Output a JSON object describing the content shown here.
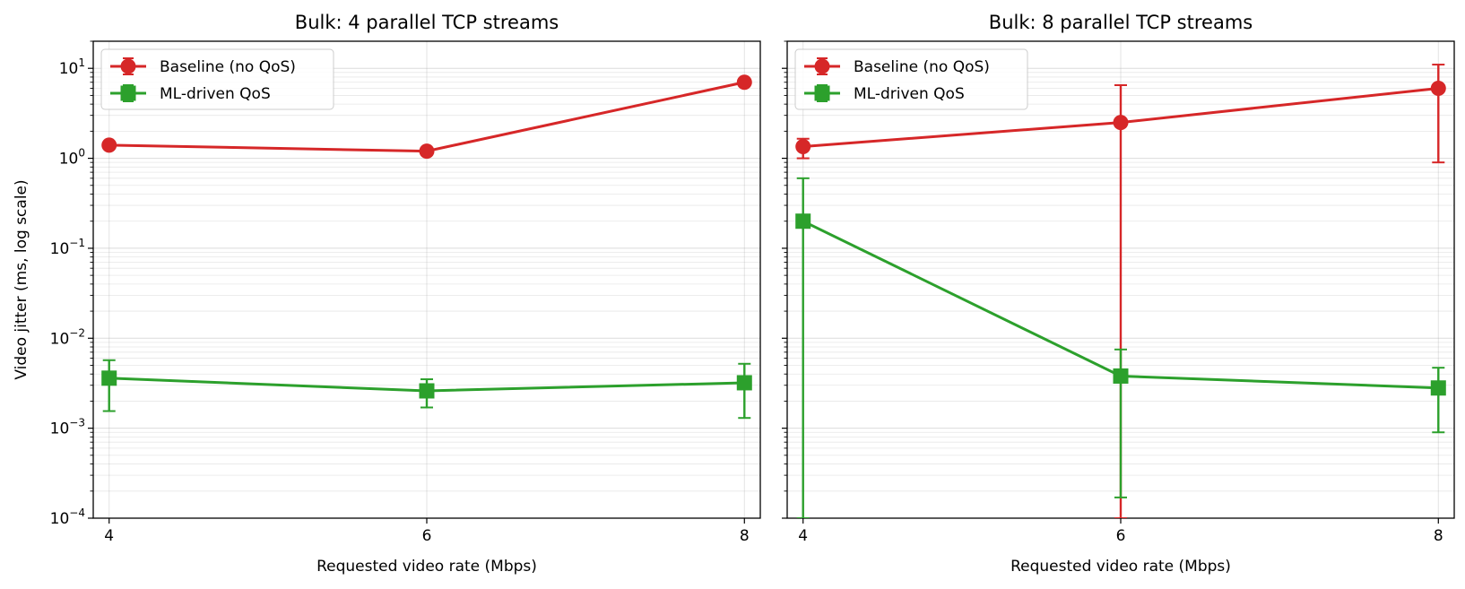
{
  "chart_data": [
    {
      "type": "line",
      "title": "Bulk: 4 parallel TCP streams",
      "xlabel": "Requested video rate (Mbps)",
      "ylabel": "Video jitter (ms, log scale)",
      "yscale": "log",
      "ylim": [
        0.0001,
        20
      ],
      "xlim": [
        3.9,
        8.1
      ],
      "x": [
        4,
        6,
        8
      ],
      "xticks": [
        "4",
        "6",
        "8"
      ],
      "yticks": [
        {
          "value": 0.0001,
          "base": "10",
          "exp": "−4"
        },
        {
          "value": 0.001,
          "base": "10",
          "exp": "−3"
        },
        {
          "value": 0.01,
          "base": "10",
          "exp": "−2"
        },
        {
          "value": 0.1,
          "base": "10",
          "exp": "−1"
        },
        {
          "value": 1,
          "base": "10",
          "exp": "0"
        },
        {
          "value": 10,
          "base": "10",
          "exp": "1"
        }
      ],
      "grid": true,
      "legend_position": "top-left",
      "series": [
        {
          "name": "Baseline (no QoS)",
          "marker": "circle",
          "color": "#d62728",
          "values": [
            1.4,
            1.2,
            7.0
          ],
          "err_low": [
            1.4,
            1.2,
            7.0
          ],
          "err_high": [
            1.4,
            1.2,
            7.0
          ]
        },
        {
          "name": "ML-driven QoS",
          "marker": "square",
          "color": "#2ca02c",
          "values": [
            0.0036,
            0.0026,
            0.0032
          ],
          "err_low": [
            0.00155,
            0.0017,
            0.0013
          ],
          "err_high": [
            0.0057,
            0.0035,
            0.0052
          ]
        }
      ]
    },
    {
      "type": "line",
      "title": "Bulk: 8 parallel TCP streams",
      "xlabel": "Requested video rate (Mbps)",
      "ylabel": "",
      "yscale": "log",
      "ylim": [
        0.0001,
        20
      ],
      "xlim": [
        3.9,
        8.1
      ],
      "x": [
        4,
        6,
        8
      ],
      "xticks": [
        "4",
        "6",
        "8"
      ],
      "grid": true,
      "legend_position": "top-left",
      "series": [
        {
          "name": "Baseline (no QoS)",
          "marker": "circle",
          "color": "#d62728",
          "values": [
            1.35,
            2.5,
            6.0
          ],
          "err_low": [
            1.0,
            0.0001,
            0.9
          ],
          "err_high": [
            1.65,
            6.5,
            11.0
          ]
        },
        {
          "name": "ML-driven QoS",
          "marker": "square",
          "color": "#2ca02c",
          "values": [
            0.2,
            0.0038,
            0.0028
          ],
          "err_low": [
            0.0001,
            0.00017,
            0.0009
          ],
          "err_high": [
            0.6,
            0.0075,
            0.0047
          ]
        }
      ]
    }
  ]
}
